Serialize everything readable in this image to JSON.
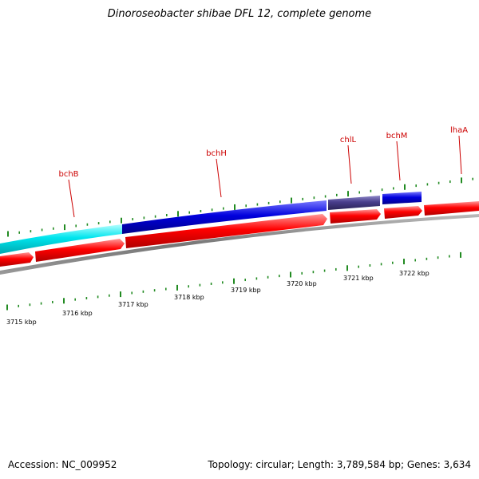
{
  "title": "Dinoroseobacter shibae DFL 12, complete genome",
  "footer": {
    "accession": "Accession: NC_009952",
    "summary": "Topology: circular; Length: 3,789,584 bp; Genes: 3,634"
  },
  "colors": {
    "gene_red": "#ff0000",
    "gene_blue": "#0000dd",
    "gene_cyan": "#00e5ee",
    "gene_slate": "#483d8b",
    "label_red": "#cc0000",
    "tick_green": "#228b22",
    "backbone": "#888888"
  },
  "gene_labels": [
    "bchB",
    "bchH",
    "chlL",
    "bchM",
    "lhaA"
  ],
  "kbp_labels": [
    "3715 kbp",
    "3716 kbp",
    "3717 kbp",
    "3718 kbp",
    "3719 kbp",
    "3720 kbp",
    "3721 kbp",
    "3722 kbp"
  ]
}
